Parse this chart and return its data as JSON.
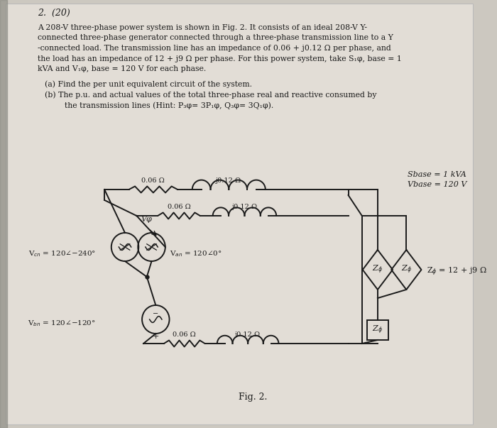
{
  "bg_color": "#ccc8c0",
  "page_bg": "#e2ddd6",
  "title_num": "2.  (20)",
  "problem_lines": [
    "A 208-V three-phase power system is shown in Fig. 2. It consists of an ideal 208-V Y-",
    "connected three-phase generator connected through a three-phase transmission line to a Y",
    "-connected load. The transmission line has an impedance of 0.06 + j0.12 Ω per phase, and",
    "the load has an impedance of 12 + j9 Ω per phase. For this power system, take S₁φ, base = 1",
    "kVA and V₁φ, base = 120 V for each phase."
  ],
  "part_a": "(a) Find the per unit equivalent circuit of the system.",
  "part_b1": "(b) The p.u. and actual values of the total three-phase real and reactive consumed by",
  "part_b2": "    the transmission lines (Hint: P₃φ= 3P₁φ, Q₃φ= 3Q₁φ).",
  "sbase": "Sbase = 1 kVA",
  "vbase": "Vbase = 120 V",
  "fig_label": "Fig. 2.",
  "wc": "#1a1a1a",
  "page_edge_color": "#bbbbbb"
}
